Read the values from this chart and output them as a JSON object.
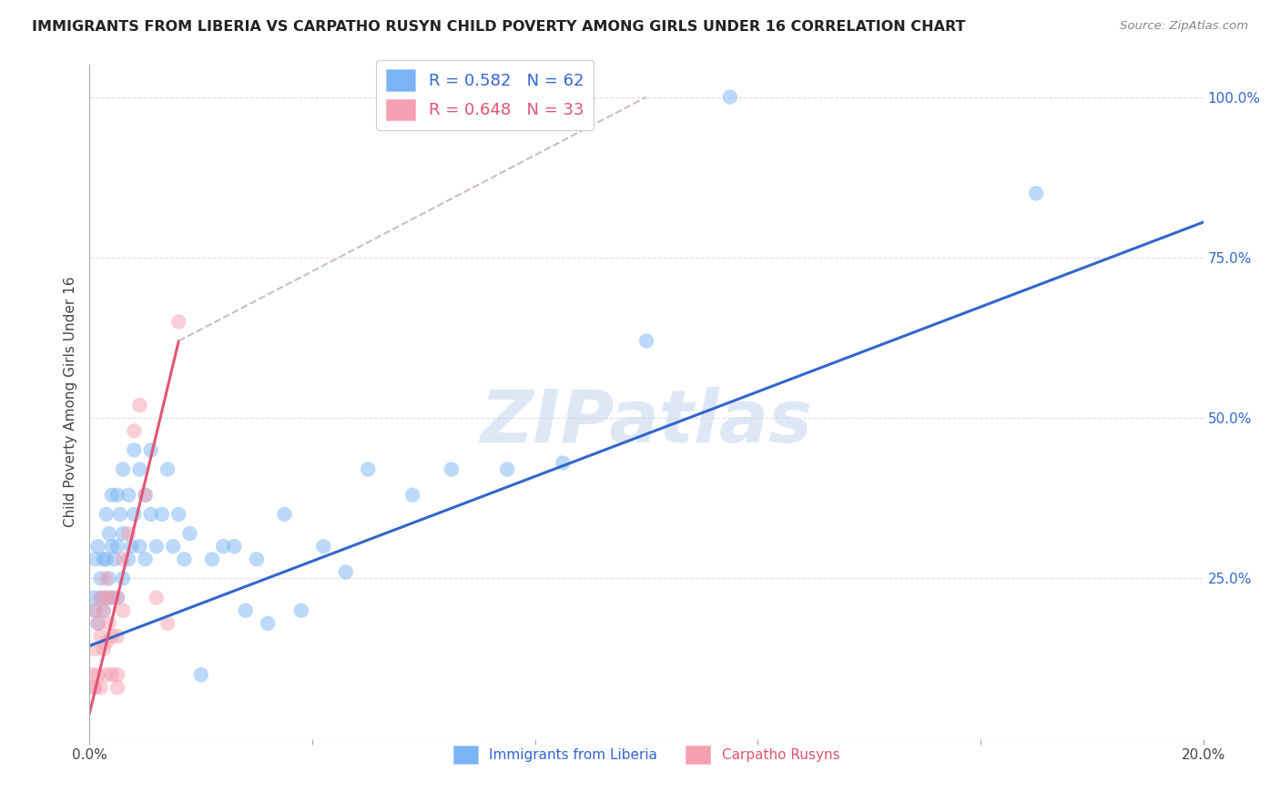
{
  "title": "IMMIGRANTS FROM LIBERIA VS CARPATHO RUSYN CHILD POVERTY AMONG GIRLS UNDER 16 CORRELATION CHART",
  "source": "Source: ZipAtlas.com",
  "ylabel": "Child Poverty Among Girls Under 16",
  "xlim": [
    0.0,
    0.2
  ],
  "ylim": [
    0.0,
    1.05
  ],
  "legend_1_label": "R = 0.582   N = 62",
  "legend_2_label": "R = 0.648   N = 33",
  "legend_color_1": "#7ab4f5",
  "legend_color_2": "#f5a0b0",
  "scatter_color_1": "#7ab4f5",
  "scatter_color_2": "#f5a0b0",
  "line_color_1": "#3366cc",
  "line_color_2": "#e05575",
  "dash_color": "#ccbbcc",
  "watermark": "ZIPatlas",
  "watermark_color": "#c8d8f0",
  "background_color": "#ffffff",
  "grid_color": "#dddddd",
  "blue_line_x0": 0.0,
  "blue_line_y0": 0.145,
  "blue_line_x1": 0.2,
  "blue_line_y1": 0.805,
  "pink_line_x0": 0.0,
  "pink_line_y0": 0.04,
  "pink_line_x1": 0.016,
  "pink_line_y1": 0.62,
  "dash_line_x0": 0.016,
  "dash_line_y0": 0.62,
  "dash_line_x1": 0.1,
  "dash_line_y1": 1.0,
  "liberia_x": [
    0.0008,
    0.001,
    0.001,
    0.0015,
    0.0015,
    0.002,
    0.002,
    0.0025,
    0.0025,
    0.003,
    0.003,
    0.003,
    0.0035,
    0.0035,
    0.004,
    0.004,
    0.004,
    0.0045,
    0.005,
    0.005,
    0.005,
    0.0055,
    0.006,
    0.006,
    0.006,
    0.007,
    0.007,
    0.0075,
    0.008,
    0.008,
    0.009,
    0.009,
    0.01,
    0.01,
    0.011,
    0.011,
    0.012,
    0.013,
    0.014,
    0.015,
    0.016,
    0.017,
    0.018,
    0.02,
    0.022,
    0.024,
    0.026,
    0.028,
    0.03,
    0.032,
    0.035,
    0.038,
    0.042,
    0.046,
    0.05,
    0.058,
    0.065,
    0.075,
    0.085,
    0.1,
    0.115,
    0.17
  ],
  "liberia_y": [
    0.22,
    0.2,
    0.28,
    0.18,
    0.3,
    0.22,
    0.25,
    0.2,
    0.28,
    0.22,
    0.28,
    0.35,
    0.25,
    0.32,
    0.3,
    0.22,
    0.38,
    0.28,
    0.3,
    0.38,
    0.22,
    0.35,
    0.25,
    0.32,
    0.42,
    0.38,
    0.28,
    0.3,
    0.35,
    0.45,
    0.3,
    0.42,
    0.38,
    0.28,
    0.45,
    0.35,
    0.3,
    0.35,
    0.42,
    0.3,
    0.35,
    0.28,
    0.32,
    0.1,
    0.28,
    0.3,
    0.3,
    0.2,
    0.28,
    0.18,
    0.35,
    0.2,
    0.3,
    0.26,
    0.42,
    0.38,
    0.42,
    0.42,
    0.43,
    0.62,
    1.0,
    0.85
  ],
  "rusyn_x": [
    0.0005,
    0.0008,
    0.001,
    0.001,
    0.001,
    0.0015,
    0.0015,
    0.002,
    0.002,
    0.002,
    0.0025,
    0.0025,
    0.003,
    0.003,
    0.003,
    0.003,
    0.0035,
    0.004,
    0.004,
    0.004,
    0.005,
    0.005,
    0.005,
    0.005,
    0.006,
    0.006,
    0.007,
    0.008,
    0.009,
    0.01,
    0.012,
    0.014,
    0.016
  ],
  "rusyn_y": [
    0.1,
    0.08,
    0.14,
    0.2,
    0.08,
    0.18,
    0.1,
    0.22,
    0.16,
    0.08,
    0.2,
    0.14,
    0.22,
    0.15,
    0.1,
    0.25,
    0.18,
    0.22,
    0.16,
    0.1,
    0.22,
    0.16,
    0.1,
    0.08,
    0.28,
    0.2,
    0.32,
    0.48,
    0.52,
    0.38,
    0.22,
    0.18,
    0.65
  ]
}
